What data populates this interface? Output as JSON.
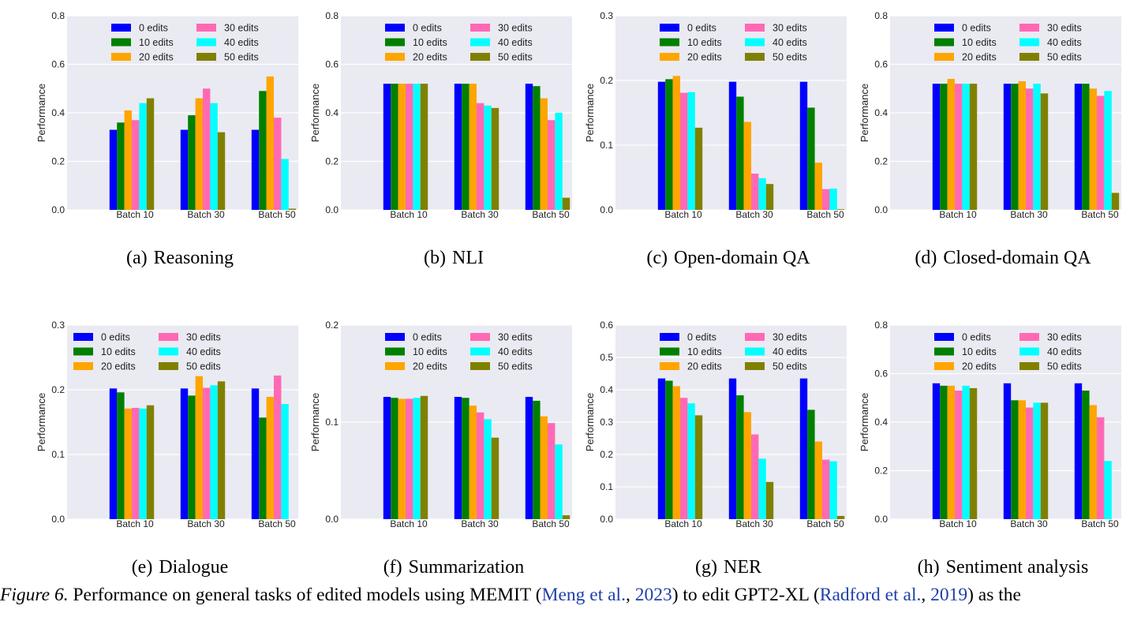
{
  "series_names": [
    "0 edits",
    "10 edits",
    "20 edits",
    "30 edits",
    "40 edits",
    "50 edits"
  ],
  "series_colors": [
    "#0000ff",
    "#008000",
    "#ffa500",
    "#ff69b4",
    "#00ffff",
    "#808000"
  ],
  "style": {
    "plot_bg": "#eaeaf2",
    "grid_color": "#ffffff"
  },
  "panels": [
    {
      "label": "(a)",
      "title": "Reasoning"
    },
    {
      "label": "(b)",
      "title": "NLI"
    },
    {
      "label": "(c)",
      "title": "Open-domain QA"
    },
    {
      "label": "(d)",
      "title": "Closed-domain QA"
    },
    {
      "label": "(e)",
      "title": "Dialogue"
    },
    {
      "label": "(f)",
      "title": "Summarization"
    },
    {
      "label": "(g)",
      "title": "NER"
    },
    {
      "label": "(h)",
      "title": "Sentiment analysis"
    }
  ],
  "caption": {
    "fig": "Figure 6.",
    "t1": " Performance on general tasks of edited models using MEMIT (",
    "c1a": "Meng et al.",
    "sep1": ", ",
    "c1b": "2023",
    "t2": ") to edit GPT2-XL (",
    "c2a": "Radford et al.",
    "sep2": ", ",
    "c2b": "2019",
    "t3": ") as the"
  },
  "chart_data": [
    {
      "type": "bar",
      "categories": [
        "Batch 10",
        "Batch 30",
        "Batch 50"
      ],
      "ylabel": "Performance",
      "ylim": [
        0,
        0.8
      ],
      "yticks": [
        "0.0",
        "0.2",
        "0.4",
        "0.6",
        "0.8"
      ],
      "grid": true,
      "legend": "top-right, 2 columns",
      "series": [
        {
          "name": "0 edits",
          "values": [
            0.33,
            0.33,
            0.33
          ]
        },
        {
          "name": "10 edits",
          "values": [
            0.36,
            0.39,
            0.49
          ]
        },
        {
          "name": "20 edits",
          "values": [
            0.41,
            0.46,
            0.55
          ]
        },
        {
          "name": "30 edits",
          "values": [
            0.37,
            0.5,
            0.38
          ]
        },
        {
          "name": "40 edits",
          "values": [
            0.44,
            0.44,
            0.21
          ]
        },
        {
          "name": "50 edits",
          "values": [
            0.46,
            0.32,
            0.005
          ]
        }
      ]
    },
    {
      "type": "bar",
      "categories": [
        "Batch 10",
        "Batch 30",
        "Batch 50"
      ],
      "ylabel": "Performance",
      "ylim": [
        0,
        0.8
      ],
      "yticks": [
        "0.0",
        "0.2",
        "0.4",
        "0.6",
        "0.8"
      ],
      "grid": true,
      "legend": "top-right, 2 columns",
      "series": [
        {
          "name": "0 edits",
          "values": [
            0.52,
            0.52,
            0.52
          ]
        },
        {
          "name": "10 edits",
          "values": [
            0.52,
            0.52,
            0.51
          ]
        },
        {
          "name": "20 edits",
          "values": [
            0.52,
            0.52,
            0.46
          ]
        },
        {
          "name": "30 edits",
          "values": [
            0.52,
            0.44,
            0.37
          ]
        },
        {
          "name": "40 edits",
          "values": [
            0.52,
            0.43,
            0.4
          ]
        },
        {
          "name": "50 edits",
          "values": [
            0.52,
            0.42,
            0.05
          ]
        }
      ]
    },
    {
      "type": "bar",
      "categories": [
        "Batch 10",
        "Batch 30",
        "Batch 50"
      ],
      "ylabel": "Performance",
      "ylim": [
        0,
        0.3
      ],
      "yticks": [
        "0.0",
        "0.1",
        "0.2",
        "0.3"
      ],
      "grid": true,
      "legend": "top-right, 2 columns",
      "series": [
        {
          "name": "0 edits",
          "values": [
            0.198,
            0.198,
            0.198
          ]
        },
        {
          "name": "10 edits",
          "values": [
            0.202,
            0.175,
            0.158
          ]
        },
        {
          "name": "20 edits",
          "values": [
            0.207,
            0.136,
            0.073
          ]
        },
        {
          "name": "30 edits",
          "values": [
            0.181,
            0.056,
            0.032
          ]
        },
        {
          "name": "40 edits",
          "values": [
            0.182,
            0.049,
            0.033
          ]
        },
        {
          "name": "50 edits",
          "values": [
            0.127,
            0.04,
            0.001
          ]
        }
      ]
    },
    {
      "type": "bar",
      "categories": [
        "Batch 10",
        "Batch 30",
        "Batch 50"
      ],
      "ylabel": "Performance",
      "ylim": [
        0,
        0.8
      ],
      "yticks": [
        "0.0",
        "0.2",
        "0.4",
        "0.6",
        "0.8"
      ],
      "grid": true,
      "legend": "top-right, 2 columns",
      "series": [
        {
          "name": "0 edits",
          "values": [
            0.52,
            0.52,
            0.52
          ]
        },
        {
          "name": "10 edits",
          "values": [
            0.52,
            0.52,
            0.52
          ]
        },
        {
          "name": "20 edits",
          "values": [
            0.54,
            0.53,
            0.5
          ]
        },
        {
          "name": "30 edits",
          "values": [
            0.52,
            0.5,
            0.47
          ]
        },
        {
          "name": "40 edits",
          "values": [
            0.52,
            0.52,
            0.49
          ]
        },
        {
          "name": "50 edits",
          "values": [
            0.52,
            0.48,
            0.07
          ]
        }
      ]
    },
    {
      "type": "bar",
      "categories": [
        "Batch 10",
        "Batch 30",
        "Batch 50"
      ],
      "ylabel": "Performance",
      "ylim": [
        0,
        0.3
      ],
      "yticks": [
        "0.0",
        "0.1",
        "0.2",
        "0.3"
      ],
      "grid": true,
      "legend": "top-left, 2 columns",
      "series": [
        {
          "name": "0 edits",
          "values": [
            0.202,
            0.202,
            0.202
          ]
        },
        {
          "name": "10 edits",
          "values": [
            0.196,
            0.191,
            0.157
          ]
        },
        {
          "name": "20 edits",
          "values": [
            0.171,
            0.221,
            0.189
          ]
        },
        {
          "name": "30 edits",
          "values": [
            0.172,
            0.203,
            0.222
          ]
        },
        {
          "name": "40 edits",
          "values": [
            0.171,
            0.207,
            0.178
          ]
        },
        {
          "name": "50 edits",
          "values": [
            0.176,
            0.213,
            0.0
          ]
        }
      ]
    },
    {
      "type": "bar",
      "categories": [
        "Batch 10",
        "Batch 30",
        "Batch 50"
      ],
      "ylabel": "Performance",
      "ylim": [
        0,
        0.2
      ],
      "yticks": [
        "0.0",
        "0.1",
        "0.2"
      ],
      "grid": true,
      "legend": "top-right, 2 columns",
      "series": [
        {
          "name": "0 edits",
          "values": [
            0.126,
            0.126,
            0.126
          ]
        },
        {
          "name": "10 edits",
          "values": [
            0.125,
            0.125,
            0.122
          ]
        },
        {
          "name": "20 edits",
          "values": [
            0.124,
            0.117,
            0.106
          ]
        },
        {
          "name": "30 edits",
          "values": [
            0.124,
            0.11,
            0.099
          ]
        },
        {
          "name": "40 edits",
          "values": [
            0.125,
            0.103,
            0.077
          ]
        },
        {
          "name": "50 edits",
          "values": [
            0.127,
            0.084,
            0.004
          ]
        }
      ]
    },
    {
      "type": "bar",
      "categories": [
        "Batch 10",
        "Batch 30",
        "Batch 50"
      ],
      "ylabel": "Performance",
      "ylim": [
        0,
        0.6
      ],
      "yticks": [
        "0.0",
        "0.1",
        "0.2",
        "0.3",
        "0.4",
        "0.5",
        "0.6"
      ],
      "grid": true,
      "legend": "top-right, 2 columns",
      "series": [
        {
          "name": "0 edits",
          "values": [
            0.435,
            0.435,
            0.435
          ]
        },
        {
          "name": "10 edits",
          "values": [
            0.428,
            0.383,
            0.338
          ]
        },
        {
          "name": "20 edits",
          "values": [
            0.411,
            0.331,
            0.24
          ]
        },
        {
          "name": "30 edits",
          "values": [
            0.375,
            0.262,
            0.184
          ]
        },
        {
          "name": "40 edits",
          "values": [
            0.358,
            0.187,
            0.179
          ]
        },
        {
          "name": "50 edits",
          "values": [
            0.321,
            0.115,
            0.01
          ]
        }
      ]
    },
    {
      "type": "bar",
      "categories": [
        "Batch 10",
        "Batch 30",
        "Batch 50"
      ],
      "ylabel": "Performance",
      "ylim": [
        0,
        0.8
      ],
      "yticks": [
        "0.0",
        "0.2",
        "0.4",
        "0.6",
        "0.8"
      ],
      "grid": true,
      "legend": "top-right, 2 columns",
      "series": [
        {
          "name": "0 edits",
          "values": [
            0.56,
            0.56,
            0.56
          ]
        },
        {
          "name": "10 edits",
          "values": [
            0.55,
            0.49,
            0.53
          ]
        },
        {
          "name": "20 edits",
          "values": [
            0.55,
            0.49,
            0.47
          ]
        },
        {
          "name": "30 edits",
          "values": [
            0.53,
            0.46,
            0.42
          ]
        },
        {
          "name": "40 edits",
          "values": [
            0.55,
            0.48,
            0.24
          ]
        },
        {
          "name": "50 edits",
          "values": [
            0.54,
            0.48,
            0.0
          ]
        }
      ]
    }
  ]
}
